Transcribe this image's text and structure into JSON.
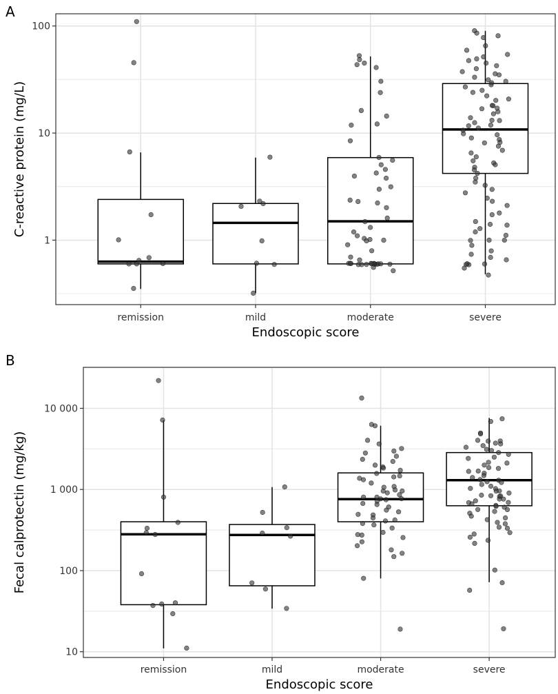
{
  "chart_data": [
    {
      "panel_label": "A",
      "type": "box",
      "scale": "log10",
      "xlabel": "Endoscopic score",
      "ylabel": "C-reactive protein (mg/L)",
      "categories": [
        "remission",
        "mild",
        "moderate",
        "severe"
      ],
      "yticks": [
        1,
        10,
        100
      ],
      "ytick_labels": [
        "1",
        "10",
        "100"
      ],
      "ylim": [
        0.25,
        130
      ],
      "boxes": [
        {
          "q1": 0.6,
          "median": 0.63,
          "q3": 2.4,
          "whisker_low": 0.35,
          "whisker_high": 6.6
        },
        {
          "q1": 0.6,
          "median": 1.45,
          "q3": 2.2,
          "whisker_low": 0.32,
          "whisker_high": 5.9
        },
        {
          "q1": 0.6,
          "median": 1.5,
          "q3": 5.9,
          "whisker_low": 0.6,
          "whisker_high": 52
        },
        {
          "q1": 4.2,
          "median": 10.8,
          "q3": 29,
          "whisker_low": 0.48,
          "whisker_high": 90
        }
      ],
      "points": [
        [
          108,
          45,
          6.6,
          1.7,
          1.0,
          0.68,
          0.65,
          0.6,
          0.6,
          0.6,
          0.35
        ],
        [
          5.9,
          2.3,
          2.2,
          2.1,
          1.0,
          0.6,
          0.6,
          0.32
        ],
        [
          52,
          48,
          45,
          44,
          41,
          30,
          24,
          16,
          14.5,
          12,
          12,
          8.5,
          6,
          5.5,
          5,
          4.5,
          4.2,
          4,
          3.8,
          3.2,
          3,
          2.4,
          2.3,
          2.2,
          2,
          1.6,
          1.5,
          1.3,
          1.2,
          1.1,
          1.05,
          1.0,
          1.0,
          1.0,
          0.9,
          0.8,
          0.7,
          0.65,
          0.6,
          0.6,
          0.6,
          0.6,
          0.6,
          0.6,
          0.6,
          0.6,
          0.6,
          0.6,
          0.6,
          0.6,
          0.6,
          0.6,
          0.6,
          0.55,
          0.52
        ],
        [
          90,
          87,
          80,
          78,
          65,
          60,
          55,
          52,
          50,
          48,
          45,
          43,
          40,
          38,
          36,
          35,
          33,
          31,
          30,
          29,
          28,
          27,
          25,
          24,
          22,
          21,
          20,
          18,
          18,
          17,
          17,
          16,
          15,
          14,
          13,
          13,
          12.5,
          12,
          11.5,
          11,
          10.5,
          10,
          9.5,
          9,
          8.6,
          8.2,
          8,
          7.5,
          7,
          6.5,
          6,
          5.5,
          5.3,
          5,
          4.8,
          4.5,
          4.2,
          3.8,
          3.5,
          3.2,
          3.0,
          2.8,
          2.5,
          2.3,
          2.1,
          1.8,
          1.7,
          1.5,
          1.4,
          1.4,
          1.3,
          1.2,
          1.1,
          1.0,
          1.0,
          1.0,
          0.9,
          0.8,
          0.75,
          0.7,
          0.65,
          0.6,
          0.6,
          0.6,
          0.6,
          0.55,
          0.48
        ]
      ]
    },
    {
      "panel_label": "B",
      "type": "box",
      "scale": "log10",
      "xlabel": "Endoscopic score",
      "ylabel": "Fecal calprotectin (mg/kg)",
      "categories": [
        "remission",
        "mild",
        "moderate",
        "severe"
      ],
      "yticks": [
        10,
        100,
        1000,
        10000
      ],
      "ytick_labels": [
        "10",
        "100",
        "1 000",
        "10 000"
      ],
      "ylim": [
        8.5,
        32000
      ],
      "boxes": [
        {
          "q1": 38,
          "median": 280,
          "q3": 400,
          "whisker_low": 11,
          "whisker_high": 7100
        },
        {
          "q1": 65,
          "median": 275,
          "q3": 370,
          "whisker_low": 34,
          "whisker_high": 1070
        },
        {
          "q1": 400,
          "median": 760,
          "q3": 1600,
          "whisker_low": 80,
          "whisker_high": 6100
        },
        {
          "q1": 630,
          "median": 1300,
          "q3": 2850,
          "whisker_low": 72,
          "whisker_high": 7600
        }
      ],
      "points": [
        [
          22000,
          7100,
          800,
          400,
          330,
          290,
          280,
          90,
          41,
          38,
          38,
          30,
          11
        ],
        [
          1070,
          520,
          330,
          290,
          270,
          70,
          60,
          34
        ],
        [
          13500,
          6300,
          6100,
          4000,
          3700,
          3200,
          3000,
          2800,
          2600,
          2400,
          2200,
          2000,
          1900,
          1800,
          1700,
          1600,
          1500,
          1400,
          1350,
          1300,
          1200,
          1100,
          1050,
          1000,
          980,
          950,
          900,
          850,
          820,
          800,
          780,
          760,
          740,
          700,
          680,
          650,
          600,
          560,
          520,
          500,
          480,
          450,
          430,
          400,
          380,
          360,
          330,
          300,
          280,
          270,
          250,
          230,
          200,
          180,
          160,
          150,
          80,
          19
        ],
        [
          7600,
          6800,
          5000,
          4800,
          4000,
          4000,
          3900,
          3800,
          3600,
          3500,
          3300,
          3100,
          3000,
          2800,
          2700,
          2500,
          2400,
          2200,
          2100,
          2000,
          1900,
          1800,
          1700,
          1650,
          1600,
          1500,
          1400,
          1350,
          1300,
          1250,
          1200,
          1150,
          1100,
          1050,
          1000,
          980,
          950,
          900,
          870,
          850,
          820,
          800,
          780,
          750,
          720,
          700,
          680,
          660,
          640,
          620,
          600,
          580,
          560,
          540,
          500,
          480,
          450,
          420,
          400,
          380,
          350,
          330,
          300,
          280,
          260,
          240,
          220,
          100,
          72,
          58,
          19
        ]
      ]
    }
  ]
}
